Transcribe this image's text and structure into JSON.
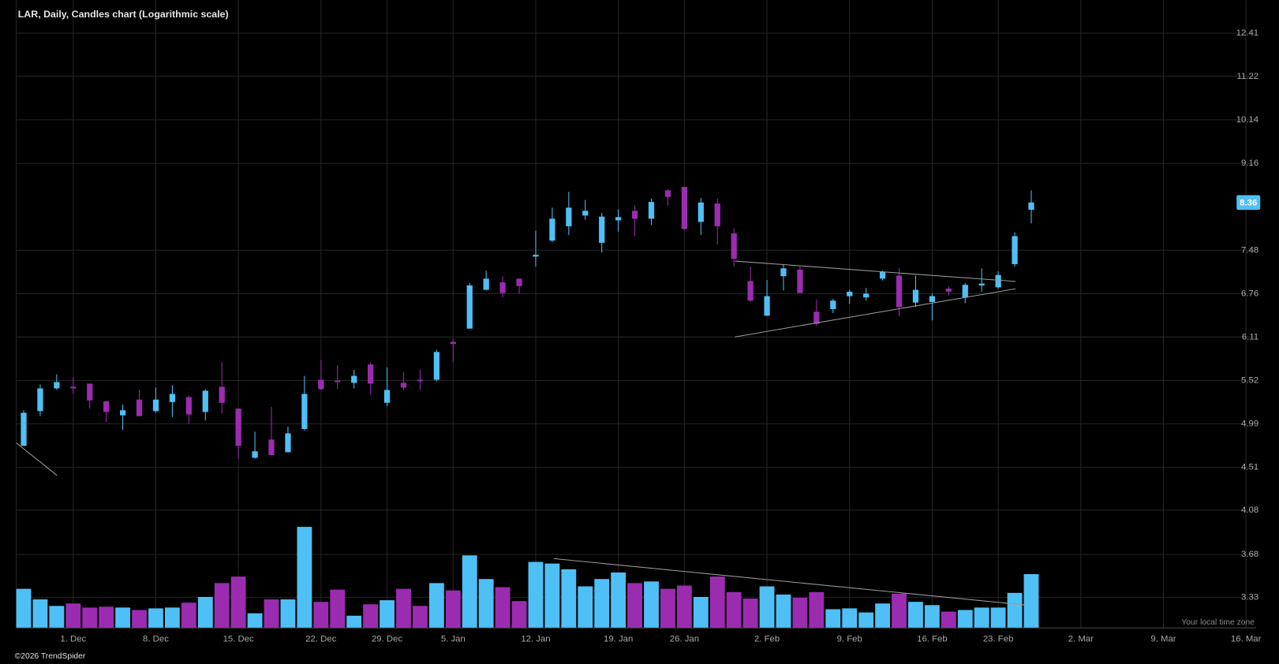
{
  "chart_data": {
    "type": "candlestick",
    "title": "LAR, Daily, Candles chart (Logarithmic scale)",
    "categories": [
      null,
      null,
      null,
      "1. Dec",
      null,
      null,
      null,
      null,
      "8. Dec",
      null,
      null,
      null,
      null,
      "15. Dec",
      null,
      null,
      null,
      null,
      "22. Dec",
      null,
      null,
      null,
      "29. Dec",
      null,
      null,
      null,
      "5. Jan",
      null,
      null,
      null,
      null,
      "12. Jan",
      null,
      null,
      null,
      null,
      "19. Jan",
      null,
      null,
      null,
      "26. Jan",
      null,
      null,
      null,
      null,
      "2. Feb",
      null,
      null,
      null,
      null,
      "9. Feb",
      null,
      null,
      null,
      null,
      "16. Feb",
      null,
      null,
      null,
      "23. Feb",
      null,
      null,
      null,
      null,
      "2. Mar",
      null,
      null,
      null,
      null,
      "9. Mar",
      null,
      null,
      null,
      null,
      "16. Mar"
    ],
    "open": [
      4.74,
      5.14,
      5.42,
      5.44,
      5.48,
      5.26,
      5.09,
      5.28,
      5.14,
      5.25,
      5.31,
      5.13,
      5.44,
      5.17,
      4.61,
      4.81,
      4.67,
      4.93,
      5.53,
      5.52,
      5.49,
      5.73,
      5.24,
      5.49,
      5.53,
      5.53,
      6.04,
      6.23,
      6.82,
      6.94,
      7.0,
      7.37,
      7.65,
      7.91,
      8.11,
      7.61,
      8.02,
      8.2,
      8.05,
      8.6,
      8.67,
      7.99,
      8.34,
      7.78,
      6.96,
      6.42,
      7.04,
      7.15,
      6.48,
      6.52,
      6.72,
      6.7,
      7.0,
      7.05,
      6.62,
      6.63,
      6.84,
      6.7,
      6.89,
      6.86,
      7.24,
      8.22,
      null,
      null,
      null,
      null,
      null,
      null,
      null,
      null,
      null,
      null,
      null,
      null,
      null
    ],
    "high": [
      5.15,
      5.47,
      5.6,
      5.56,
      5.48,
      5.26,
      5.22,
      5.4,
      5.43,
      5.46,
      5.33,
      5.41,
      5.76,
      5.17,
      4.9,
      5.19,
      4.96,
      5.58,
      5.79,
      5.72,
      5.66,
      5.76,
      5.69,
      5.63,
      5.66,
      5.93,
      6.08,
      6.93,
      7.13,
      7.04,
      7.0,
      7.83,
      8.26,
      8.57,
      8.41,
      8.16,
      8.23,
      8.3,
      8.44,
      8.62,
      8.67,
      8.45,
      8.44,
      7.87,
      7.2,
      6.98,
      7.23,
      7.2,
      6.67,
      6.68,
      6.82,
      6.85,
      7.13,
      7.17,
      7.05,
      6.76,
      6.88,
      6.93,
      7.17,
      7.12,
      7.8,
      8.6,
      null,
      null,
      null,
      null,
      null,
      null,
      null,
      null,
      null,
      null,
      null,
      null,
      null
    ],
    "low": [
      4.74,
      5.08,
      5.4,
      5.35,
      5.17,
      5.01,
      4.92,
      5.08,
      5.12,
      5.07,
      4.99,
      5.03,
      5.11,
      4.6,
      4.6,
      4.64,
      4.67,
      4.91,
      5.4,
      5.41,
      5.42,
      5.34,
      5.2,
      5.4,
      5.4,
      5.51,
      5.76,
      6.23,
      6.81,
      6.7,
      6.76,
      7.2,
      7.62,
      7.75,
      8.03,
      7.44,
      7.81,
      7.73,
      7.93,
      8.3,
      7.84,
      7.75,
      7.58,
      7.2,
      6.63,
      6.42,
      6.81,
      6.77,
      6.27,
      6.46,
      6.6,
      6.65,
      6.97,
      6.41,
      6.55,
      6.35,
      6.73,
      6.61,
      6.79,
      6.84,
      7.2,
      7.96,
      null,
      null,
      null,
      null,
      null,
      null,
      null,
      null,
      null,
      null,
      null,
      null,
      null
    ],
    "close": [
      5.12,
      5.42,
      5.5,
      5.42,
      5.27,
      5.13,
      5.15,
      5.08,
      5.28,
      5.35,
      5.1,
      5.39,
      5.24,
      4.74,
      4.68,
      4.64,
      4.88,
      5.35,
      5.41,
      5.5,
      5.58,
      5.48,
      5.4,
      5.43,
      5.51,
      5.9,
      6.01,
      6.89,
      7.0,
      6.77,
      6.88,
      7.4,
      8.05,
      8.26,
      8.2,
      8.09,
      8.08,
      8.05,
      8.37,
      8.47,
      7.86,
      8.36,
      7.91,
      7.33,
      6.65,
      6.72,
      7.17,
      6.77,
      6.3,
      6.65,
      6.79,
      6.76,
      7.11,
      6.55,
      6.82,
      6.72,
      6.79,
      6.9,
      6.92,
      7.06,
      7.73,
      8.36,
      null,
      null,
      null,
      null,
      null,
      null,
      null,
      null,
      null,
      null,
      null,
      null,
      null
    ],
    "volume": [
      48,
      35,
      27,
      30,
      25,
      26,
      25,
      22,
      24,
      25,
      31,
      38,
      55,
      63,
      18,
      35,
      35,
      124,
      32,
      47,
      15,
      29,
      34,
      48,
      27,
      55,
      46,
      89,
      60,
      50,
      33,
      81,
      79,
      72,
      51,
      60,
      68,
      55,
      57,
      48,
      52,
      38,
      63,
      44,
      36,
      51,
      41,
      37,
      44,
      23,
      24,
      19,
      30,
      42,
      32,
      28,
      20,
      22,
      25,
      25,
      43,
      66,
      null,
      null,
      null,
      null,
      null,
      null,
      null,
      null,
      null,
      null,
      null,
      null,
      null
    ],
    "ylim": [
      3.1,
      13.4
    ],
    "yticks": [
      3.33,
      3.68,
      4.08,
      4.51,
      4.99,
      5.52,
      6.11,
      6.76,
      7.48,
      9.16,
      10.14,
      11.22,
      12.41
    ],
    "y2lim": [
      0,
      770
    ],
    "log_scale": true,
    "grid": true,
    "up_color": "#4fc0f5",
    "down_color": "#9b2cb0",
    "timezone_label": "Your local time zone",
    "copyright": "©2026 TrendSpider"
  }
}
